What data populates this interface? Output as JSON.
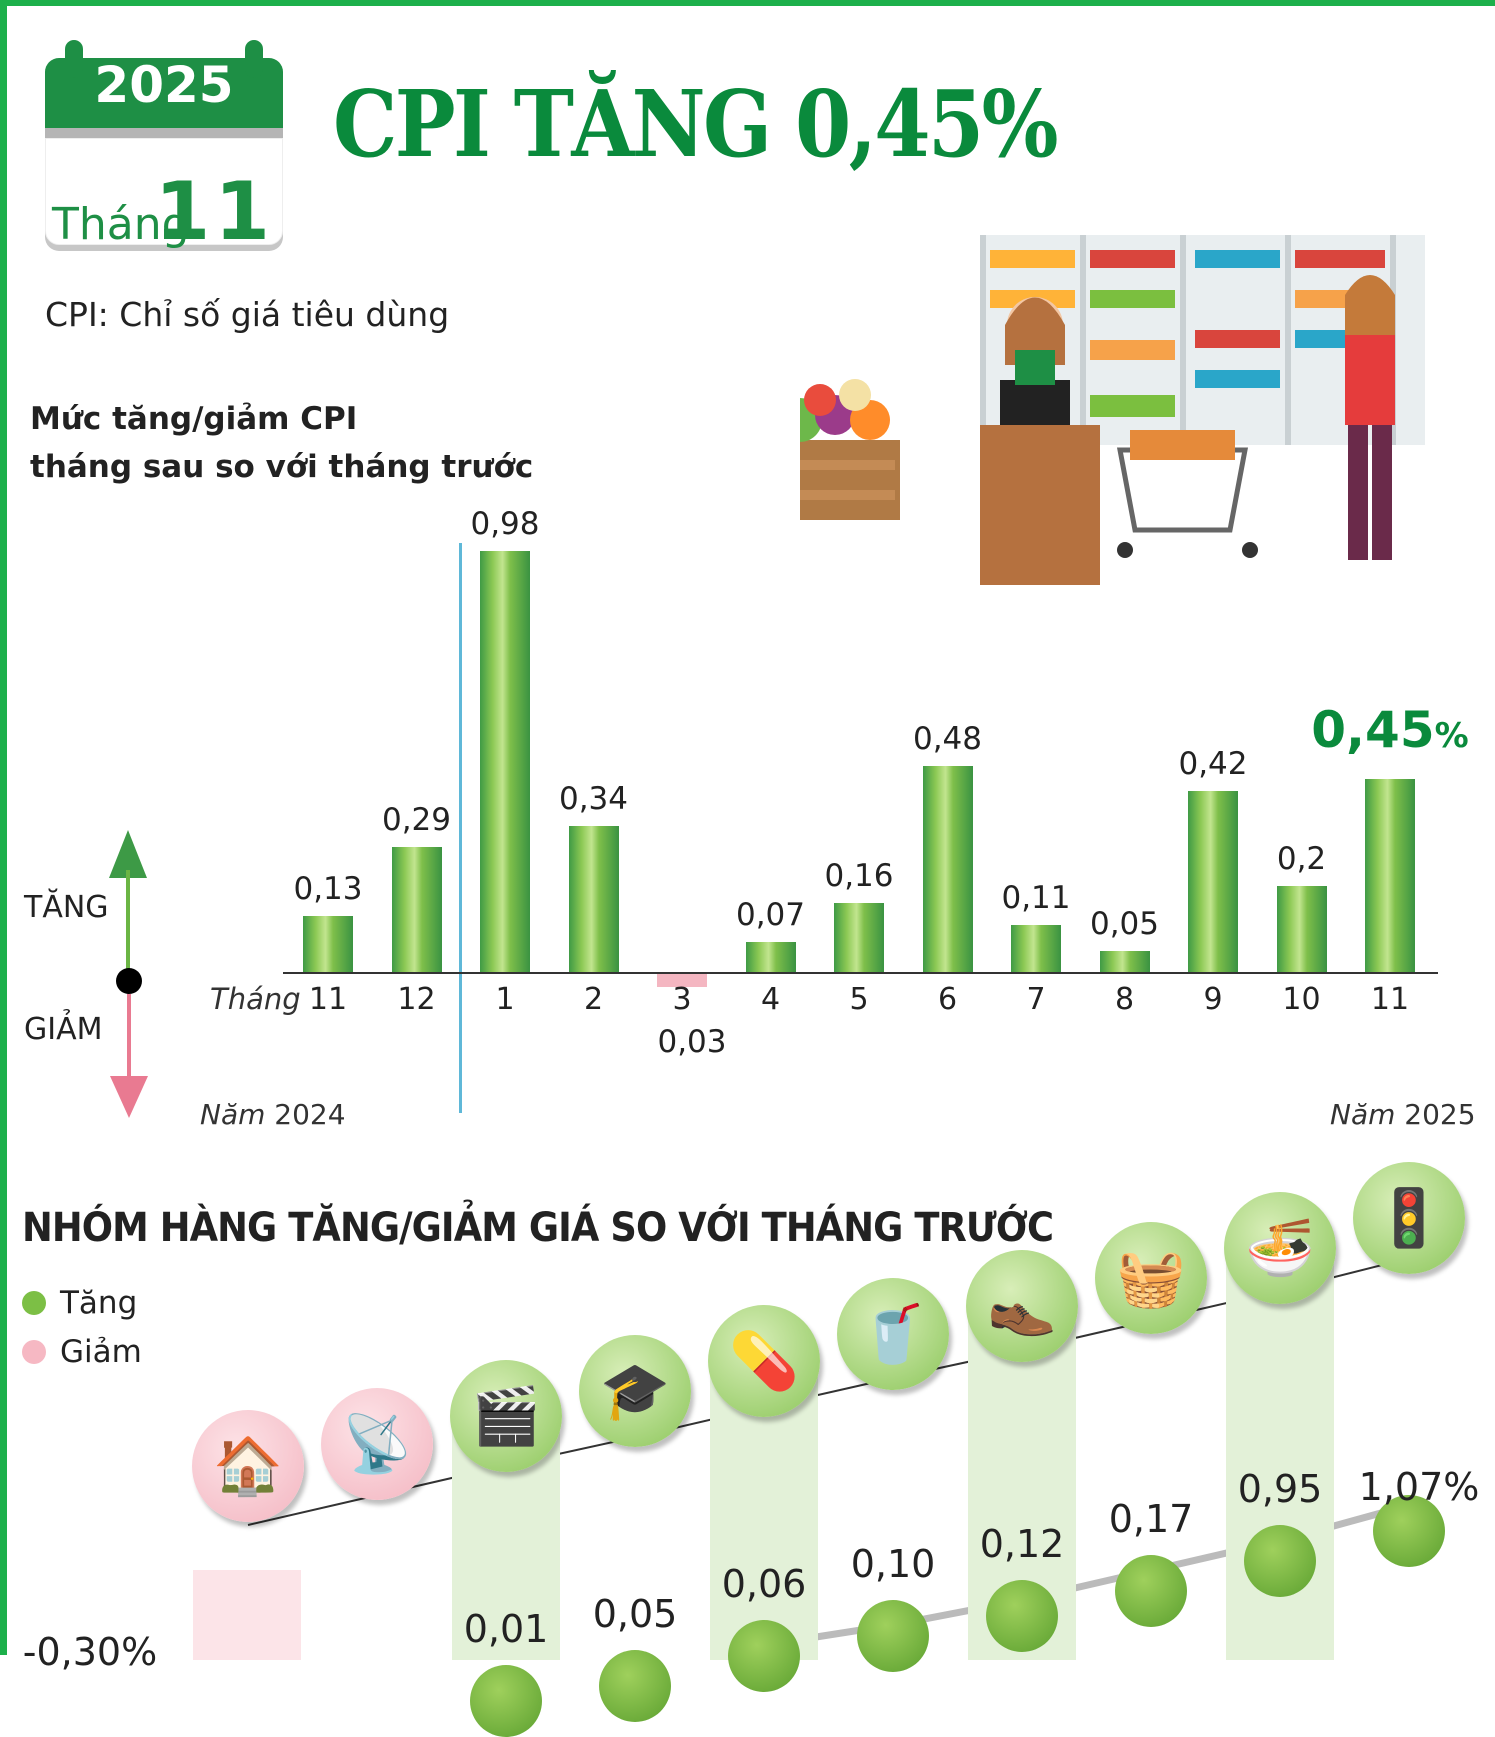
{
  "calendar": {
    "year": "2025",
    "month_label": "Tháng",
    "month_number": "11"
  },
  "header": {
    "title": "CPI TĂNG 0,45%",
    "subtitle": "CPI: Chỉ số giá tiêu dùng"
  },
  "chart_section": {
    "title_line1": "Mức tăng/giảm CPI",
    "title_line2": "tháng sau so với tháng trước",
    "up_label": "TĂNG",
    "down_label": "GIẢM",
    "month_axis_label": "Tháng",
    "year_left_prefix": "Năm",
    "year_left": "2024",
    "year_right_prefix": "Năm",
    "year_right": "2025",
    "highlight_value": "0,45",
    "highlight_unit": "%",
    "value_labels": [
      "0,13",
      "0,29",
      "0,98",
      "0,34",
      "0,03",
      "0,07",
      "0,16",
      "0,48",
      "0,11",
      "0,05",
      "0,42",
      "0,2",
      "0,45"
    ],
    "month_labels": [
      "11",
      "12",
      "1",
      "2",
      "3",
      "4",
      "5",
      "6",
      "7",
      "8",
      "9",
      "10",
      "11"
    ]
  },
  "groups_section": {
    "title": "NHÓM HÀNG TĂNG/GIẢM GIÁ SO VỚI THÁNG TRƯỚC",
    "legend": [
      {
        "label": "Tăng",
        "color": "#7cbf45"
      },
      {
        "label": "Giảm",
        "color": "#f6b8c3"
      }
    ],
    "items": [
      {
        "icon": "house-electricity-water-icon",
        "value": "-0,30%",
        "direction": "down"
      },
      {
        "icon": "telecom-tower-icon",
        "value": "",
        "direction": "down"
      },
      {
        "icon": "cinema-clapper-icon",
        "value": "0,01",
        "direction": "up"
      },
      {
        "icon": "graduation-cap-icon",
        "value": "0,05",
        "direction": "up"
      },
      {
        "icon": "medicine-pills-icon",
        "value": "0,06",
        "direction": "up"
      },
      {
        "icon": "drink-cigarette-icon",
        "value": "0,10",
        "direction": "up"
      },
      {
        "icon": "clothing-shoes-icon",
        "value": "0,12",
        "direction": "up"
      },
      {
        "icon": "washing-machine-icon",
        "value": "0,17",
        "direction": "up"
      },
      {
        "icon": "food-bowl-icon",
        "value": "0,95",
        "direction": "up"
      },
      {
        "icon": "traffic-light-icon",
        "value": "1,07%",
        "direction": "up"
      }
    ]
  },
  "colors": {
    "brand_green": "#0a8a3c",
    "frame_green": "#1db04b",
    "bar_green": "#6cb743",
    "negative_pink": "#f4b6c1",
    "divider_blue": "#5fb8d8"
  },
  "chart_data": {
    "type": "bar",
    "title": "Mức tăng/giảm CPI tháng sau so với tháng trước",
    "categories": [
      "11/2024",
      "12/2024",
      "1/2025",
      "2/2025",
      "3/2025",
      "4/2025",
      "5/2025",
      "6/2025",
      "7/2025",
      "8/2025",
      "9/2025",
      "10/2025",
      "11/2025"
    ],
    "values": [
      0.13,
      0.29,
      0.98,
      0.34,
      -0.03,
      0.07,
      0.16,
      0.48,
      0.11,
      0.05,
      0.42,
      0.2,
      0.45
    ],
    "xlabel": "Tháng",
    "ylabel": "%",
    "ylim": [
      -0.1,
      1.0
    ],
    "grid": false,
    "annotations": [
      "TĂNG",
      "GIẢM",
      "Năm 2024",
      "Năm 2025"
    ],
    "secondary": {
      "type": "scatter",
      "title": "Nhóm hàng tăng/giảm giá so với tháng trước",
      "categories": [
        "Nhà ở, điện nước",
        "Bưu chính viễn thông",
        "Văn hóa, giải trí",
        "Giáo dục",
        "Thuốc, dịch vụ y tế",
        "Đồ uống, thuốc lá",
        "May mặc, giày dép",
        "Thiết bị, đồ dùng gia đình",
        "Hàng ăn, dịch vụ ăn uống",
        "Giao thông"
      ],
      "values": [
        -0.3,
        null,
        0.01,
        0.05,
        0.06,
        0.1,
        0.12,
        0.17,
        0.95,
        1.07
      ],
      "legend": [
        "Tăng",
        "Giảm"
      ]
    }
  }
}
